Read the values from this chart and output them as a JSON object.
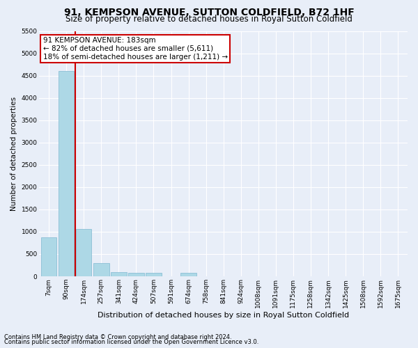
{
  "title": "91, KEMPSON AVENUE, SUTTON COLDFIELD, B72 1HF",
  "subtitle": "Size of property relative to detached houses in Royal Sutton Coldfield",
  "xlabel": "Distribution of detached houses by size in Royal Sutton Coldfield",
  "ylabel": "Number of detached properties",
  "footnote1": "Contains HM Land Registry data © Crown copyright and database right 2024.",
  "footnote2": "Contains public sector information licensed under the Open Government Licence v3.0.",
  "annotation_line1": "91 KEMPSON AVENUE: 183sqm",
  "annotation_line2": "← 82% of detached houses are smaller (5,611)",
  "annotation_line3": "18% of semi-detached houses are larger (1,211) →",
  "categories": [
    "7sqm",
    "90sqm",
    "174sqm",
    "257sqm",
    "341sqm",
    "424sqm",
    "507sqm",
    "591sqm",
    "674sqm",
    "758sqm",
    "841sqm",
    "924sqm",
    "1008sqm",
    "1091sqm",
    "1175sqm",
    "1258sqm",
    "1342sqm",
    "1425sqm",
    "1508sqm",
    "1592sqm",
    "1675sqm"
  ],
  "values": [
    870,
    4600,
    1060,
    290,
    100,
    80,
    80,
    0,
    80,
    0,
    0,
    0,
    0,
    0,
    0,
    0,
    0,
    0,
    0,
    0,
    0
  ],
  "bar_color": "#add8e6",
  "bar_edge_color": "#7fb8d0",
  "vline_color": "#cc0000",
  "vline_x_index": 1.5,
  "annotation_box_edgecolor": "#cc0000",
  "ylim": [
    0,
    5500
  ],
  "yticks": [
    0,
    500,
    1000,
    1500,
    2000,
    2500,
    3000,
    3500,
    4000,
    4500,
    5000,
    5500
  ],
  "background_color": "#e8eef8",
  "grid_color": "#ffffff",
  "title_fontsize": 10,
  "subtitle_fontsize": 8.5,
  "xlabel_fontsize": 8,
  "ylabel_fontsize": 7.5,
  "tick_fontsize": 6.5,
  "annotation_fontsize": 7.5,
  "footnote_fontsize": 6
}
